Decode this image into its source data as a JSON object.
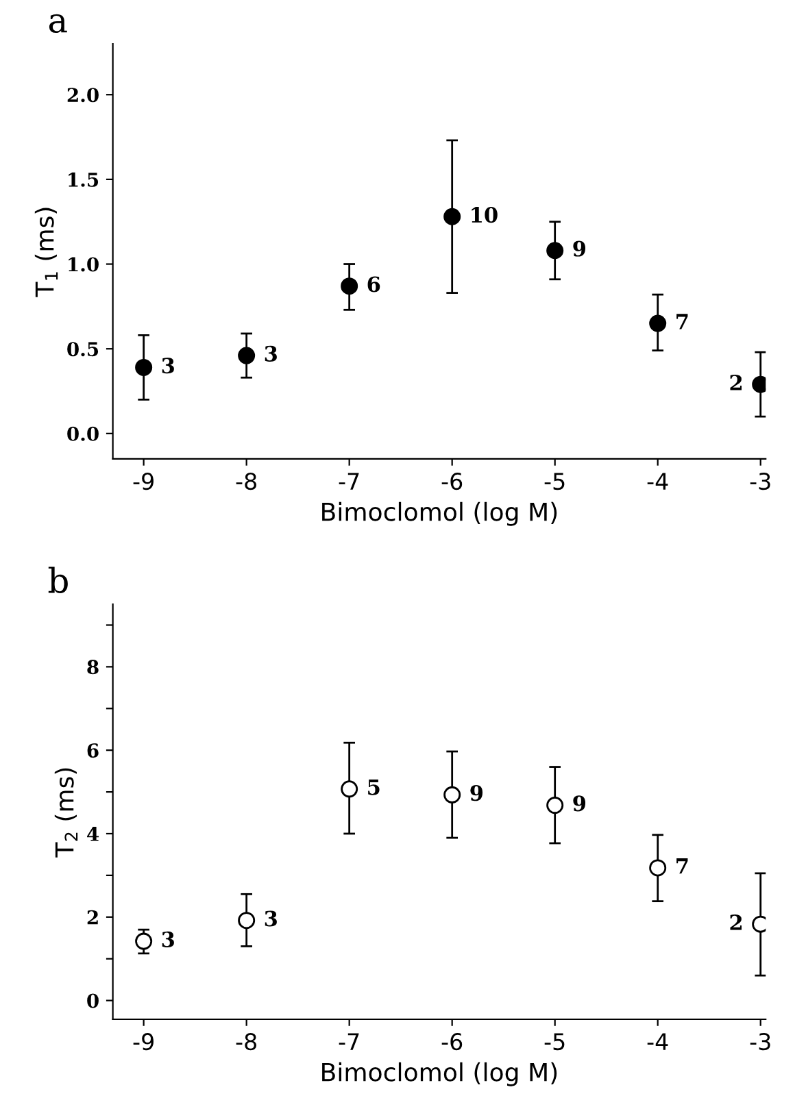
{
  "chart_data": [
    {
      "type": "scatter",
      "title": "a",
      "xlabel": "Bimoclomol (log M)",
      "ylabel": "T$_{1}$ (ms)",
      "x": [
        -9,
        -8,
        -7,
        -6,
        -5,
        -4,
        -3
      ],
      "series": [
        {
          "color": "#000000",
          "values": [
            0.39,
            0.46,
            0.87,
            1.28,
            1.08,
            0.65,
            0.29
          ],
          "errors": [
            [
              0.2,
              0.58
            ],
            [
              0.33,
              0.59
            ],
            [
              0.73,
              1.0
            ],
            [
              0.83,
              1.73
            ],
            [
              0.91,
              1.25
            ],
            [
              0.49,
              0.82
            ],
            [
              0.1,
              0.48
            ]
          ]
        }
      ],
      "marker": "circle",
      "xlim": [
        -9.3,
        -2.95
      ],
      "ylim": [
        -0.15,
        2.3
      ],
      "xticks": [
        -9,
        -8,
        -7,
        -6,
        -5,
        -4,
        -3
      ],
      "yticks": [
        {
          "value": 0,
          "label": "0.0"
        },
        0.5,
        {
          "value": 1,
          "label": "1.0"
        },
        1.5,
        {
          "value": 2,
          "label": "2.0"
        }
      ],
      "grid": false,
      "legend": false,
      "annotations": [
        {
          "text": "3",
          "x": -9,
          "y": 0.39
        },
        {
          "text": "3",
          "x": -8,
          "y": 0.46
        },
        {
          "text": "6",
          "x": -7,
          "y": 0.87
        },
        {
          "text": "10",
          "x": -6,
          "y": 1.28
        },
        {
          "text": "9",
          "x": -5,
          "y": 1.08
        },
        {
          "text": "7",
          "x": -4,
          "y": 0.65
        },
        {
          "text": "2",
          "x": -3,
          "y": 0.29
        }
      ]
    },
    {
      "type": "scatter",
      "title": "b",
      "xlabel": "Bimoclomol (log M)",
      "ylabel": "T$_{2}$ (ms)",
      "x": [
        -9,
        -8,
        -7,
        -6,
        -5,
        -4,
        -3
      ],
      "series": [
        {
          "color": "#ffffff",
          "values": [
            1.42,
            1.92,
            5.07,
            4.93,
            4.68,
            3.18,
            1.83
          ],
          "errors": [
            [
              1.13,
              1.7
            ],
            [
              1.3,
              2.55
            ],
            [
              4.0,
              6.18
            ],
            [
              3.9,
              5.97
            ],
            [
              3.77,
              5.6
            ],
            [
              2.38,
              3.97
            ],
            [
              0.6,
              3.05
            ]
          ]
        }
      ],
      "marker": "circle",
      "xlim": [
        -9.3,
        -2.95
      ],
      "ylim": [
        -0.45,
        9.5
      ],
      "xticks": [
        -9,
        -8,
        -7,
        -6,
        -5,
        -4,
        -3
      ],
      "yticks": [
        0,
        {
          "value": 1,
          "label": null
        },
        2,
        {
          "value": 3,
          "label": null
        },
        4,
        {
          "value": 5,
          "label": null
        },
        6,
        {
          "value": 7,
          "label": null
        },
        8,
        {
          "value": 9,
          "label": null
        }
      ],
      "grid": false,
      "legend": false,
      "annotations": [
        {
          "text": "3",
          "x": -9,
          "y": 1.42
        },
        {
          "text": "3",
          "x": -8,
          "y": 1.92
        },
        {
          "text": "5",
          "x": -7,
          "y": 5.07
        },
        {
          "text": "9",
          "x": -6,
          "y": 4.93
        },
        {
          "text": "9",
          "x": -5,
          "y": 4.68
        },
        {
          "text": "7",
          "x": -4,
          "y": 3.18
        },
        {
          "text": "2",
          "x": -3,
          "y": 1.83
        }
      ]
    }
  ]
}
